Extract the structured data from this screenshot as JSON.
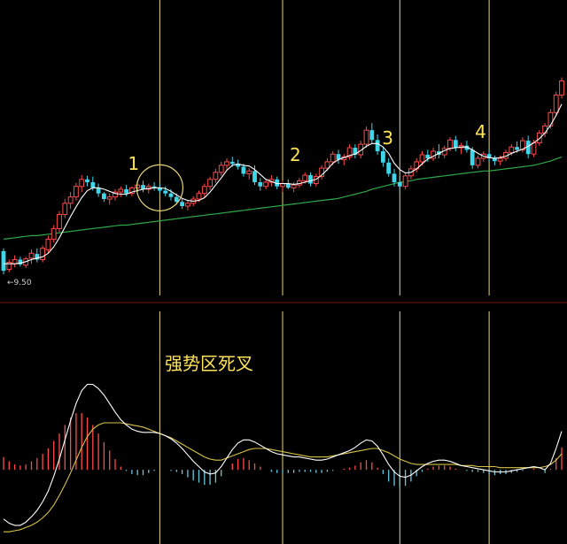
{
  "chart_data": [
    {
      "type": "candlestick",
      "panel": "price",
      "colors": {
        "up": "#ff4a4a",
        "down": "#3fd6ea",
        "ma_short": "#ffffff",
        "ma_long": "#2ea84a",
        "marker_line": "#e8d57a",
        "circle": "#e8d57a"
      },
      "low_label": "9.50",
      "markers": [
        {
          "label": "1",
          "x_index": 28
        },
        {
          "label": "2",
          "x_index": 50
        },
        {
          "label": "3",
          "x_index": 71
        },
        {
          "label": "4",
          "x_index": 87
        }
      ],
      "ylim": [
        9.2,
        13.2
      ],
      "ohlc": [
        [
          9.78,
          9.82,
          9.45,
          9.5
        ],
        [
          9.52,
          9.66,
          9.48,
          9.62
        ],
        [
          9.6,
          9.72,
          9.55,
          9.66
        ],
        [
          9.66,
          9.7,
          9.56,
          9.59
        ],
        [
          9.58,
          9.7,
          9.54,
          9.67
        ],
        [
          9.68,
          9.8,
          9.6,
          9.75
        ],
        [
          9.74,
          9.82,
          9.62,
          9.66
        ],
        [
          9.66,
          9.86,
          9.62,
          9.82
        ],
        [
          9.8,
          10.0,
          9.75,
          9.95
        ],
        [
          9.95,
          10.15,
          9.9,
          10.1
        ],
        [
          10.1,
          10.35,
          10.05,
          10.3
        ],
        [
          10.3,
          10.52,
          10.25,
          10.46
        ],
        [
          10.46,
          10.62,
          10.38,
          10.55
        ],
        [
          10.55,
          10.75,
          10.5,
          10.7
        ],
        [
          10.7,
          10.86,
          10.62,
          10.8
        ],
        [
          10.8,
          10.85,
          10.7,
          10.76
        ],
        [
          10.76,
          10.84,
          10.64,
          10.68
        ],
        [
          10.68,
          10.74,
          10.55,
          10.6
        ],
        [
          10.6,
          10.62,
          10.48,
          10.52
        ],
        [
          10.52,
          10.6,
          10.44,
          10.55
        ],
        [
          10.55,
          10.66,
          10.5,
          10.62
        ],
        [
          10.62,
          10.7,
          10.55,
          10.66
        ],
        [
          10.66,
          10.72,
          10.56,
          10.6
        ],
        [
          10.6,
          10.7,
          10.56,
          10.68
        ],
        [
          10.68,
          10.78,
          10.62,
          10.72
        ],
        [
          10.72,
          10.78,
          10.62,
          10.66
        ],
        [
          10.66,
          10.74,
          10.6,
          10.7
        ],
        [
          10.7,
          10.76,
          10.64,
          10.68
        ],
        [
          10.68,
          10.74,
          10.6,
          10.64
        ],
        [
          10.64,
          10.7,
          10.56,
          10.6
        ],
        [
          10.6,
          10.66,
          10.5,
          10.55
        ],
        [
          10.55,
          10.6,
          10.44,
          10.48
        ],
        [
          10.48,
          10.52,
          10.38,
          10.42
        ],
        [
          10.42,
          10.5,
          10.36,
          10.46
        ],
        [
          10.46,
          10.56,
          10.42,
          10.52
        ],
        [
          10.52,
          10.64,
          10.48,
          10.6
        ],
        [
          10.6,
          10.74,
          10.55,
          10.7
        ],
        [
          10.7,
          10.84,
          10.65,
          10.8
        ],
        [
          10.8,
          10.95,
          10.75,
          10.9
        ],
        [
          10.9,
          11.05,
          10.85,
          11.0
        ],
        [
          11.0,
          11.1,
          10.94,
          11.05
        ],
        [
          11.05,
          11.12,
          10.98,
          11.02
        ],
        [
          11.02,
          11.08,
          10.94,
          10.98
        ],
        [
          10.98,
          11.02,
          10.84,
          10.88
        ],
        [
          10.88,
          10.96,
          10.8,
          10.92
        ],
        [
          10.92,
          11.0,
          10.72,
          10.76
        ],
        [
          10.76,
          10.82,
          10.64,
          10.7
        ],
        [
          10.7,
          10.8,
          10.66,
          10.76
        ],
        [
          10.76,
          10.86,
          10.7,
          10.8
        ],
        [
          10.8,
          10.84,
          10.66,
          10.7
        ],
        [
          10.7,
          10.78,
          10.62,
          10.74
        ],
        [
          10.74,
          10.8,
          10.66,
          10.68
        ],
        [
          10.68,
          10.76,
          10.62,
          10.72
        ],
        [
          10.72,
          10.82,
          10.68,
          10.78
        ],
        [
          10.78,
          10.9,
          10.74,
          10.86
        ],
        [
          10.86,
          10.9,
          10.7,
          10.74
        ],
        [
          10.74,
          10.88,
          10.7,
          10.84
        ],
        [
          10.84,
          11.0,
          10.8,
          10.96
        ],
        [
          10.96,
          11.1,
          10.92,
          11.05
        ],
        [
          11.05,
          11.2,
          11.0,
          11.16
        ],
        [
          11.16,
          11.22,
          11.02,
          11.08
        ],
        [
          11.08,
          11.16,
          11.0,
          11.12
        ],
        [
          11.12,
          11.3,
          11.08,
          11.25
        ],
        [
          11.25,
          11.3,
          11.1,
          11.15
        ],
        [
          11.15,
          11.35,
          11.1,
          11.3
        ],
        [
          11.3,
          11.55,
          11.25,
          11.5
        ],
        [
          11.5,
          11.6,
          11.3,
          11.36
        ],
        [
          11.36,
          11.44,
          11.15,
          11.2
        ],
        [
          11.2,
          11.26,
          10.98,
          11.04
        ],
        [
          11.04,
          11.1,
          10.84,
          10.88
        ],
        [
          10.88,
          10.95,
          10.7,
          10.76
        ],
        [
          10.76,
          10.84,
          10.62,
          10.7
        ],
        [
          10.7,
          10.9,
          10.66,
          10.85
        ],
        [
          10.85,
          11.0,
          10.8,
          10.95
        ],
        [
          10.95,
          11.1,
          10.9,
          11.05
        ],
        [
          11.05,
          11.2,
          11.0,
          11.15
        ],
        [
          11.15,
          11.22,
          11.05,
          11.1
        ],
        [
          11.1,
          11.25,
          11.06,
          11.2
        ],
        [
          11.2,
          11.3,
          11.1,
          11.15
        ],
        [
          11.15,
          11.28,
          11.1,
          11.24
        ],
        [
          11.24,
          11.4,
          11.2,
          11.36
        ],
        [
          11.36,
          11.42,
          11.2,
          11.25
        ],
        [
          11.25,
          11.32,
          11.16,
          11.28
        ],
        [
          11.28,
          11.35,
          11.18,
          11.22
        ],
        [
          11.22,
          11.26,
          10.95,
          11.0
        ],
        [
          11.0,
          11.14,
          10.96,
          11.1
        ],
        [
          11.1,
          11.2,
          11.05,
          11.16
        ],
        [
          11.16,
          11.22,
          11.05,
          11.1
        ],
        [
          11.1,
          11.14,
          11.0,
          11.06
        ],
        [
          11.06,
          11.14,
          11.0,
          11.1
        ],
        [
          11.1,
          11.22,
          11.06,
          11.18
        ],
        [
          11.18,
          11.3,
          11.14,
          11.26
        ],
        [
          11.26,
          11.34,
          11.18,
          11.22
        ],
        [
          11.22,
          11.4,
          11.18,
          11.35
        ],
        [
          11.35,
          11.42,
          11.1,
          11.16
        ],
        [
          11.16,
          11.36,
          11.12,
          11.32
        ],
        [
          11.32,
          11.5,
          11.28,
          11.46
        ],
        [
          11.46,
          11.6,
          11.4,
          11.56
        ],
        [
          11.56,
          11.8,
          11.52,
          11.75
        ],
        [
          11.75,
          12.05,
          11.7,
          12.0
        ],
        [
          12.0,
          12.25,
          11.95,
          12.2
        ]
      ],
      "ma_short": [
        9.6,
        9.6,
        9.6,
        9.61,
        9.63,
        9.66,
        9.68,
        9.7,
        9.75,
        9.84,
        9.97,
        10.12,
        10.27,
        10.41,
        10.54,
        10.64,
        10.68,
        10.68,
        10.66,
        10.63,
        10.6,
        10.59,
        10.59,
        10.62,
        10.64,
        10.66,
        10.67,
        10.68,
        10.68,
        10.67,
        10.63,
        10.58,
        10.53,
        10.5,
        10.49,
        10.5,
        10.54,
        10.62,
        10.72,
        10.82,
        10.93,
        11.0,
        11.02,
        11.0,
        10.99,
        10.94,
        10.87,
        10.8,
        10.77,
        10.74,
        10.74,
        10.74,
        10.73,
        10.74,
        10.76,
        10.78,
        10.8,
        10.86,
        10.94,
        11.03,
        11.08,
        11.11,
        11.14,
        11.16,
        11.21,
        11.27,
        11.31,
        11.31,
        11.26,
        11.17,
        11.03,
        10.94,
        10.89,
        10.9,
        10.95,
        11.02,
        11.09,
        11.13,
        11.17,
        11.21,
        11.24,
        11.25,
        11.26,
        11.26,
        11.22,
        11.17,
        11.13,
        11.11,
        11.1,
        11.11,
        11.13,
        11.17,
        11.2,
        11.23,
        11.27,
        11.32,
        11.38,
        11.46,
        11.57,
        11.71,
        11.87
      ],
      "ma_long": [
        9.95,
        9.96,
        9.97,
        9.98,
        9.99,
        10.0,
        10.0,
        10.01,
        10.02,
        10.03,
        10.04,
        10.05,
        10.06,
        10.07,
        10.08,
        10.09,
        10.1,
        10.11,
        10.12,
        10.13,
        10.14,
        10.15,
        10.15,
        10.16,
        10.17,
        10.18,
        10.19,
        10.2,
        10.21,
        10.22,
        10.23,
        10.24,
        10.25,
        10.26,
        10.27,
        10.28,
        10.29,
        10.3,
        10.31,
        10.32,
        10.33,
        10.34,
        10.35,
        10.36,
        10.37,
        10.38,
        10.39,
        10.4,
        10.41,
        10.42,
        10.43,
        10.44,
        10.45,
        10.46,
        10.47,
        10.48,
        10.49,
        10.5,
        10.51,
        10.52,
        10.53,
        10.55,
        10.57,
        10.59,
        10.61,
        10.63,
        10.66,
        10.68,
        10.7,
        10.72,
        10.74,
        10.76,
        10.77,
        10.78,
        10.8,
        10.81,
        10.82,
        10.83,
        10.84,
        10.85,
        10.86,
        10.87,
        10.88,
        10.89,
        10.9,
        10.91,
        10.92,
        10.92,
        10.93,
        10.94,
        10.95,
        10.96,
        10.97,
        10.98,
        10.99,
        11.0,
        11.02,
        11.04,
        11.06,
        11.09,
        11.12
      ]
    },
    {
      "type": "macd",
      "panel": "indicator",
      "title": "强势区死叉",
      "colors": {
        "pos": "#ff4a4a",
        "neg": "#66c6dc",
        "dif": "#ffffff",
        "dea": "#d8c24a",
        "marker_line": "#e8d57a"
      },
      "ylim": [
        -0.62,
        0.92
      ],
      "dif": [
        -0.46,
        -0.5,
        -0.52,
        -0.52,
        -0.49,
        -0.44,
        -0.38,
        -0.3,
        -0.2,
        -0.06,
        0.1,
        0.28,
        0.46,
        0.62,
        0.74,
        0.8,
        0.8,
        0.76,
        0.7,
        0.62,
        0.54,
        0.47,
        0.42,
        0.38,
        0.36,
        0.35,
        0.35,
        0.35,
        0.34,
        0.32,
        0.29,
        0.25,
        0.2,
        0.14,
        0.08,
        0.03,
        -0.02,
        -0.04,
        -0.03,
        0.03,
        0.11,
        0.19,
        0.25,
        0.28,
        0.28,
        0.26,
        0.23,
        0.2,
        0.17,
        0.15,
        0.14,
        0.13,
        0.12,
        0.12,
        0.11,
        0.1,
        0.09,
        0.09,
        0.1,
        0.12,
        0.14,
        0.16,
        0.18,
        0.21,
        0.25,
        0.28,
        0.27,
        0.22,
        0.14,
        0.05,
        -0.02,
        -0.06,
        -0.07,
        -0.05,
        -0.01,
        0.03,
        0.06,
        0.08,
        0.09,
        0.09,
        0.08,
        0.06,
        0.04,
        0.03,
        0.02,
        0.01,
        0.0,
        -0.01,
        -0.02,
        -0.02,
        -0.02,
        -0.01,
        0.0,
        0.01,
        0.02,
        0.03,
        0.02,
        0.0,
        0.06,
        0.2,
        0.36
      ],
      "dea": [
        -0.58,
        -0.58,
        -0.57,
        -0.56,
        -0.54,
        -0.52,
        -0.49,
        -0.45,
        -0.4,
        -0.33,
        -0.24,
        -0.14,
        -0.03,
        0.09,
        0.21,
        0.31,
        0.38,
        0.42,
        0.44,
        0.44,
        0.44,
        0.44,
        0.43,
        0.42,
        0.41,
        0.4,
        0.38,
        0.36,
        0.34,
        0.32,
        0.3,
        0.27,
        0.24,
        0.21,
        0.18,
        0.15,
        0.12,
        0.1,
        0.09,
        0.09,
        0.11,
        0.13,
        0.15,
        0.17,
        0.19,
        0.2,
        0.2,
        0.2,
        0.19,
        0.18,
        0.17,
        0.16,
        0.15,
        0.14,
        0.13,
        0.12,
        0.12,
        0.12,
        0.12,
        0.13,
        0.14,
        0.15,
        0.16,
        0.17,
        0.18,
        0.19,
        0.2,
        0.2,
        0.18,
        0.16,
        0.13,
        0.1,
        0.08,
        0.06,
        0.05,
        0.05,
        0.05,
        0.05,
        0.05,
        0.05,
        0.05,
        0.05,
        0.04,
        0.04,
        0.04,
        0.03,
        0.03,
        0.03,
        0.03,
        0.02,
        0.02,
        0.02,
        0.02,
        0.02,
        0.02,
        0.02,
        0.02,
        0.03,
        0.05,
        0.09,
        0.15
      ],
      "hist": [
        0.24,
        0.16,
        0.1,
        0.08,
        0.1,
        0.16,
        0.22,
        0.3,
        0.4,
        0.54,
        0.68,
        0.84,
        0.98,
        1.06,
        1.06,
        0.98,
        0.84,
        0.68,
        0.52,
        0.36,
        0.2,
        0.06,
        -0.02,
        -0.08,
        -0.1,
        -0.1,
        -0.06,
        -0.02,
        0.0,
        0.0,
        -0.02,
        -0.04,
        -0.08,
        -0.14,
        -0.2,
        -0.24,
        -0.28,
        -0.28,
        -0.24,
        -0.12,
        0.0,
        0.12,
        0.2,
        0.22,
        0.18,
        0.12,
        0.06,
        0.0,
        -0.04,
        -0.06,
        -0.06,
        -0.06,
        -0.06,
        -0.04,
        -0.04,
        -0.04,
        -0.06,
        -0.06,
        -0.04,
        -0.02,
        0.0,
        0.02,
        0.04,
        0.08,
        0.14,
        0.18,
        0.14,
        0.04,
        -0.08,
        -0.22,
        -0.3,
        -0.32,
        -0.3,
        -0.22,
        -0.12,
        -0.04,
        0.02,
        0.06,
        0.08,
        0.08,
        0.06,
        0.02,
        0.0,
        -0.02,
        -0.04,
        -0.04,
        -0.06,
        -0.08,
        -0.1,
        -0.08,
        -0.08,
        -0.06,
        -0.04,
        -0.02,
        0.0,
        0.02,
        0.0,
        -0.06,
        0.02,
        0.22,
        0.42
      ]
    }
  ]
}
